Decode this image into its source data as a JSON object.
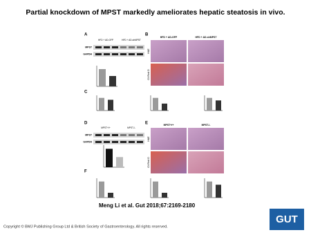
{
  "title": "Partial knockdown of MPST markedly ameliorates hepatic steatosis in vivo.",
  "citation": "Meng Li et al. Gut 2018;67:2169-2180",
  "copyright": "Copyright © BMJ Publishing Group Ltd & British Society of Gastroenterology. All rights reserved.",
  "logo": "GUT",
  "panels": {
    "letters": [
      "A",
      "B",
      "C",
      "D",
      "E",
      "F"
    ],
    "groups_a": [
      "HFD + AD-GFP",
      "HFD + AD-shMPST"
    ],
    "groups_d": [
      "MPST+/+",
      "MPST-/-"
    ],
    "blot_rows": [
      "MPST",
      "GAPDH"
    ],
    "stains": [
      "H&E",
      "Oil Red O"
    ]
  },
  "charts": [
    {
      "ylim": [
        0,
        1.2
      ],
      "values": [
        1.0,
        0.6
      ],
      "colors": [
        "#9a9a9a",
        "#333333"
      ]
    },
    {
      "ylim": [
        0,
        1.2
      ],
      "values": [
        1.0,
        0.85
      ],
      "colors": [
        "#9a9a9a",
        "#333333"
      ]
    },
    {
      "ylim": [
        0,
        1.2
      ],
      "values": [
        1.0,
        0.55
      ],
      "colors": [
        "#9a9a9a",
        "#333333"
      ]
    },
    {
      "ylim": [
        0,
        1.2
      ],
      "values": [
        1.0,
        0.8
      ],
      "colors": [
        "#9a9a9a",
        "#333333"
      ]
    },
    {
      "ylim": [
        0,
        1.2
      ],
      "values": [
        1.0,
        0.55
      ],
      "colors": [
        "#111111",
        "#bbbbbb"
      ]
    },
    {
      "ylim": [
        0,
        1.2
      ],
      "values": [
        1.0,
        0.3
      ],
      "colors": [
        "#9a9a9a",
        "#333333"
      ]
    },
    {
      "ylim": [
        0,
        1.2
      ],
      "values": [
        1.0,
        0.3
      ],
      "colors": [
        "#9a9a9a",
        "#333333"
      ]
    },
    {
      "ylim": [
        0,
        1.2
      ],
      "values": [
        1.0,
        0.8
      ],
      "colors": [
        "#9a9a9a",
        "#333333"
      ]
    }
  ]
}
